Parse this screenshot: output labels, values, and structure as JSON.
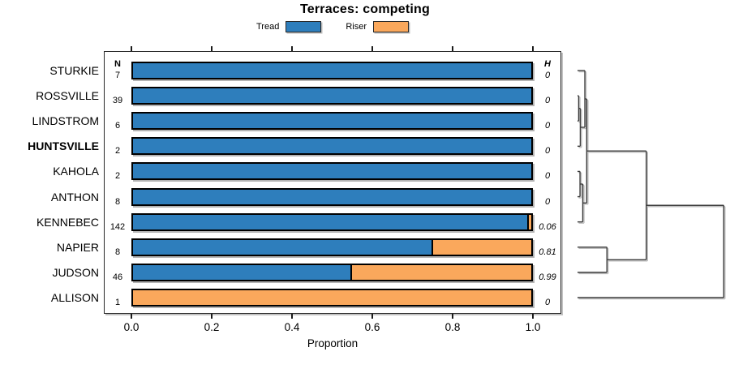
{
  "title": "Terraces: competing",
  "legend": {
    "items": [
      {
        "label": "Tread",
        "color": "#2e7ebc"
      },
      {
        "label": "Riser",
        "color": "#faa85c"
      }
    ]
  },
  "columns": {
    "n_header": "N",
    "h_header": "H"
  },
  "chart_data": {
    "type": "bar",
    "orientation": "horizontal",
    "stacked": true,
    "title": "Terraces: competing",
    "xlabel": "Proportion",
    "xlim": [
      0,
      1
    ],
    "x_tick_labels": [
      "0.0",
      "0.2",
      "0.4",
      "0.6",
      "0.8",
      "1.0"
    ],
    "categories": [
      "STURKIE",
      "ROSSVILLE",
      "LINDSTROM",
      "HUNTSVILLE",
      "KAHOLA",
      "ANTHON",
      "KENNEBEC",
      "NAPIER",
      "JUDSON",
      "ALLISON"
    ],
    "bold_category": "HUNTSVILLE",
    "n_values": [
      7,
      39,
      6,
      2,
      2,
      8,
      142,
      8,
      46,
      1
    ],
    "h_values": [
      "0",
      "0",
      "0",
      "0",
      "0",
      "0",
      "0.06",
      "0.81",
      "0.99",
      "0"
    ],
    "series": [
      {
        "name": "Tread",
        "color": "#2e7ebc",
        "values": [
          1,
          1,
          1,
          1,
          1,
          1,
          0.99,
          0.75,
          0.545,
          0
        ]
      },
      {
        "name": "Riser",
        "color": "#faa85c",
        "values": [
          0,
          0,
          0,
          0,
          0,
          0,
          0.01,
          0.25,
          0.455,
          1
        ]
      }
    ]
  },
  "dendrogram": {
    "leaves": [
      "STURKIE",
      "ROSSVILLE",
      "LINDSTROM",
      "HUNTSVILLE",
      "KAHOLA",
      "ANTHON",
      "KENNEBEC",
      "NAPIER",
      "JUDSON",
      "ALLISON"
    ],
    "merges": [
      {
        "a": "ROSSVILLE",
        "b": "LINDSTROM",
        "h": 0.008
      },
      {
        "a": "m0",
        "b": "HUNTSVILLE",
        "h": 0.019
      },
      {
        "a": "STURKIE",
        "b": "m1",
        "h": 0.05
      },
      {
        "a": "KAHOLA",
        "b": "ANTHON",
        "h": 0.017
      },
      {
        "a": "m3",
        "b": "KENNEBEC",
        "h": 0.036
      },
      {
        "a": "m2",
        "b": "m4",
        "h": 0.063
      },
      {
        "a": "NAPIER",
        "b": "JUDSON",
        "h": 0.201
      },
      {
        "a": "m5",
        "b": "m6",
        "h": 0.47
      },
      {
        "a": "m7",
        "b": "ALLISON",
        "h": 1.0
      }
    ]
  }
}
